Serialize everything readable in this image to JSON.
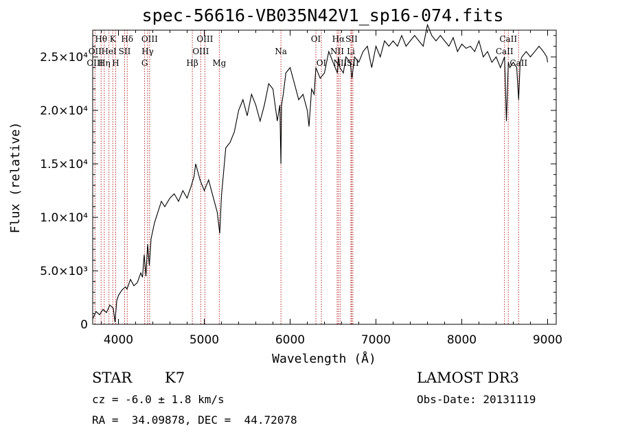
{
  "chart_data": {
    "type": "line",
    "title": "spec-56616-VB035N42V1_sp16-074.fits",
    "xlabel": "Wavelength (Å)",
    "ylabel": "Flux (relative)",
    "xlim": [
      3700,
      9100
    ],
    "ylim": [
      0,
      27500
    ],
    "xticks": [
      4000,
      5000,
      6000,
      7000,
      8000,
      9000
    ],
    "yticks": [
      {
        "value": 0,
        "label": "0"
      },
      {
        "value": 5000,
        "label": "5.0×10³"
      },
      {
        "value": 10000,
        "label": "1.0×10⁴"
      },
      {
        "value": 15000,
        "label": "1.5×10⁴"
      },
      {
        "value": 20000,
        "label": "2.0×10⁴"
      },
      {
        "value": 25000,
        "label": "2.5×10⁴"
      }
    ],
    "series": [
      {
        "name": "spectrum",
        "x": [
          3700,
          3740,
          3780,
          3820,
          3860,
          3900,
          3940,
          3960,
          3980,
          4000,
          4040,
          4080,
          4100,
          4140,
          4180,
          4220,
          4260,
          4280,
          4300,
          4320,
          4340,
          4360,
          4380,
          4420,
          4460,
          4500,
          4540,
          4600,
          4650,
          4700,
          4750,
          4800,
          4850,
          4880,
          4900,
          4950,
          5000,
          5050,
          5100,
          5150,
          5180,
          5200,
          5250,
          5300,
          5350,
          5400,
          5450,
          5500,
          5550,
          5600,
          5650,
          5700,
          5750,
          5800,
          5850,
          5880,
          5893,
          5900,
          5920,
          5950,
          6000,
          6050,
          6100,
          6150,
          6200,
          6220,
          6250,
          6280,
          6300,
          6350,
          6400,
          6450,
          6500,
          6550,
          6563,
          6580,
          6620,
          6650,
          6700,
          6720,
          6750,
          6800,
          6850,
          6900,
          6950,
          7000,
          7050,
          7100,
          7150,
          7200,
          7250,
          7300,
          7350,
          7400,
          7450,
          7500,
          7550,
          7600,
          7650,
          7700,
          7750,
          7800,
          7850,
          7900,
          7950,
          8000,
          8050,
          8100,
          8150,
          8200,
          8250,
          8300,
          8350,
          8400,
          8450,
          8498,
          8520,
          8542,
          8560,
          8600,
          8640,
          8662,
          8680,
          8700,
          8750,
          8800,
          8850,
          8900,
          8950,
          8990,
          9000
        ],
        "y": [
          500,
          1200,
          900,
          1400,
          1100,
          1800,
          1500,
          200,
          2200,
          2700,
          3200,
          3500,
          3300,
          4200,
          3600,
          3900,
          4800,
          4400,
          6500,
          4500,
          7500,
          5500,
          8000,
          9500,
          10500,
          11500,
          11000,
          11800,
          12200,
          11500,
          12500,
          11800,
          13000,
          13800,
          15000,
          13500,
          12500,
          13500,
          12000,
          10500,
          8500,
          12000,
          16500,
          17000,
          18000,
          20000,
          21000,
          19500,
          21500,
          20500,
          19000,
          20500,
          22500,
          22000,
          19000,
          20500,
          15000,
          20500,
          21500,
          23500,
          24000,
          22500,
          21000,
          21500,
          20000,
          18500,
          22000,
          21500,
          24000,
          23000,
          23500,
          25500,
          24500,
          23500,
          25000,
          24000,
          23500,
          25000,
          24500,
          23000,
          25000,
          24500,
          25500,
          26000,
          24000,
          26000,
          25000,
          26500,
          26000,
          26500,
          26000,
          27000,
          26000,
          26500,
          27000,
          26500,
          26000,
          28000,
          27000,
          26500,
          27000,
          26500,
          26000,
          26800,
          25500,
          26200,
          25800,
          26000,
          25500,
          26500,
          25000,
          25500,
          24500,
          25000,
          24000,
          25000,
          19000,
          24500,
          24000,
          24500,
          24000,
          21000,
          24500,
          25000,
          25500,
          25000,
          25500,
          26000,
          25500,
          25000,
          24500
        ]
      }
    ],
    "lines_top": [
      {
        "label": "Hθ",
        "x": 3798
      },
      {
        "label": "K",
        "x": 3934
      },
      {
        "label": "Hδ",
        "x": 4102
      },
      {
        "label": "OIII",
        "x": 4363
      },
      {
        "label": "OIII",
        "x": 5007
      },
      {
        "label": "OI",
        "x": 6300
      },
      {
        "label": "Hα",
        "x": 6563
      },
      {
        "label": "SII",
        "x": 6716
      },
      {
        "label": "CaII",
        "x": 8542
      }
    ],
    "lines_mid": [
      {
        "label": "OII",
        "x": 3727
      },
      {
        "label": "HeI",
        "x": 3889
      },
      {
        "label": "SII",
        "x": 4072
      },
      {
        "label": "Hγ",
        "x": 4340
      },
      {
        "label": "OIII",
        "x": 4959
      },
      {
        "label": "Na",
        "x": 5893
      },
      {
        "label": "NII",
        "x": 6548
      },
      {
        "label": "Li",
        "x": 6708
      },
      {
        "label": "CaII",
        "x": 8498
      }
    ],
    "lines_low": [
      {
        "label": "OIII",
        "x": 3727
      },
      {
        "label": "Hη",
        "x": 3835
      },
      {
        "label": "H",
        "x": 3968
      },
      {
        "label": "G",
        "x": 4305
      },
      {
        "label": "Hβ",
        "x": 4861
      },
      {
        "label": "Mg",
        "x": 5175
      },
      {
        "label": "OI",
        "x": 6364
      },
      {
        "label": "NII",
        "x": 6583
      },
      {
        "label": "SII",
        "x": 6731
      },
      {
        "label": "CaII",
        "x": 8662
      }
    ],
    "line_color": "#b22222"
  },
  "info": {
    "class": "STAR",
    "subclass": "K7",
    "survey": "LAMOST DR3",
    "cz": "cz = -6.0 ± 1.8 km/s",
    "obs_date": "Obs-Date: 20131119",
    "coords": "RA =  34.09878, DEC =  44.72078"
  }
}
